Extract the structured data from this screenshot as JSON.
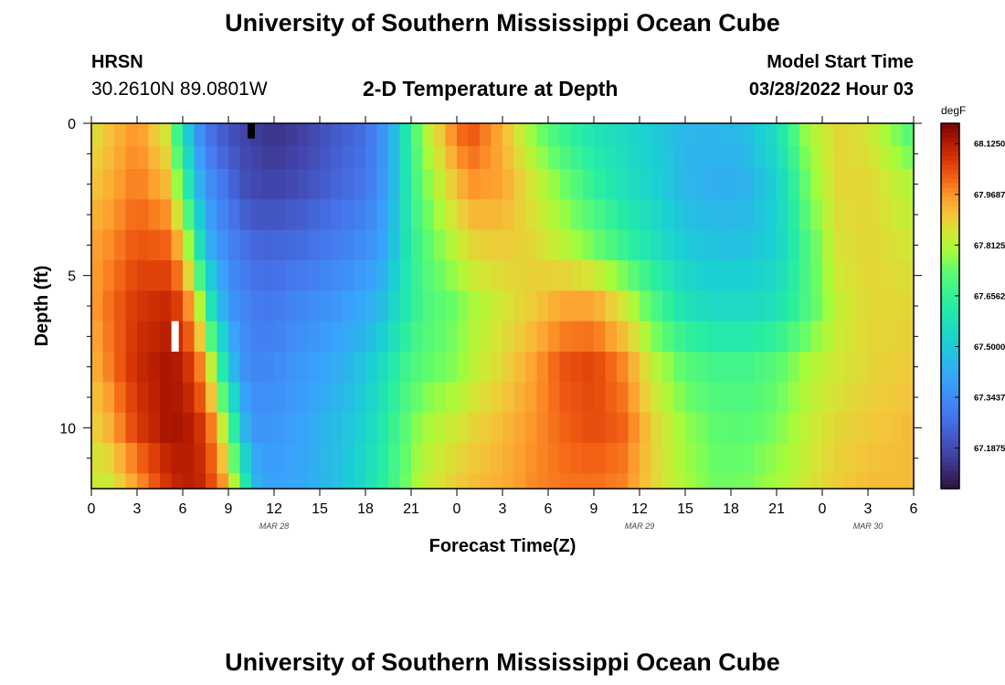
{
  "page": {
    "title": "University of Southern Mississippi Ocean Cube",
    "station_code": "HRSN",
    "station_coords": "30.2610N  89.0801W",
    "plot_subtitle": "2-D Temperature at Depth",
    "model_start_label": "Model Start Time",
    "model_start_value": "03/28/2022 Hour 03",
    "footer_title": "University of Southern Mississippi Ocean Cube"
  },
  "chart_data": {
    "type": "heatmap",
    "title": "2-D Temperature at Depth",
    "xlabel": "Forecast Time(Z)",
    "ylabel": "Depth (ft)",
    "x_hours_range": [
      0,
      54
    ],
    "y_depth_range": [
      0,
      12
    ],
    "y_inverted": true,
    "x_tick_hours": [
      0,
      3,
      6,
      9,
      12,
      15,
      18,
      21,
      24,
      27,
      30,
      33,
      36,
      39,
      42,
      45,
      48,
      51,
      54
    ],
    "x_tick_labels": [
      "0",
      "3",
      "6",
      "9",
      "12",
      "15",
      "18",
      "21",
      "0",
      "3",
      "6",
      "9",
      "12",
      "15",
      "18",
      "21",
      "0",
      "3",
      "6"
    ],
    "date_labels": [
      {
        "text": "MAR 28",
        "hour": 12
      },
      {
        "text": "MAR 29",
        "hour": 36
      },
      {
        "text": "MAR 30",
        "hour": 51
      }
    ],
    "y_ticks": [
      0,
      5,
      10
    ],
    "y_tick_labels": [
      "0",
      "5",
      "10"
    ],
    "colorbar": {
      "unit": "degF",
      "vmin": 67.0625,
      "vmax": 68.1875,
      "tick_values": [
        68.125,
        67.96875,
        67.8125,
        67.65625,
        67.5,
        67.34375,
        67.1875
      ],
      "tick_labels": [
        "68.1250",
        "67.9687",
        "67.8125",
        "67.6562",
        "67.5000",
        "67.3437",
        "67.1875"
      ]
    },
    "hour_step": 0.75,
    "depth_bands": [
      0,
      0.75,
      1.5,
      2.5,
      3.5,
      4.5,
      5.5,
      6.5,
      7.5,
      8.5,
      9.5,
      10.5,
      11.5,
      12
    ],
    "depth_samples": [
      0,
      2,
      4,
      6,
      8,
      10,
      12
    ],
    "profile_time_hours": [
      0,
      1,
      3,
      5,
      6,
      7,
      8,
      9,
      10,
      11,
      12,
      14,
      16,
      18,
      19,
      20,
      21,
      22,
      24,
      25,
      27,
      29,
      31,
      33,
      35,
      37,
      39,
      41,
      43,
      45,
      47,
      49,
      51,
      54
    ],
    "temperature_degF": [
      [
        67.85,
        67.9,
        67.95,
        67.95,
        67.92,
        67.88,
        67.84
      ],
      [
        67.9,
        67.93,
        67.97,
        68.0,
        67.98,
        67.92,
        67.82
      ],
      [
        67.97,
        68.0,
        68.04,
        68.08,
        68.1,
        68.07,
        67.95
      ],
      [
        67.83,
        67.92,
        68.02,
        68.1,
        68.14,
        68.14,
        68.08
      ],
      [
        67.55,
        67.7,
        67.9,
        68.05,
        68.12,
        68.14,
        68.12
      ],
      [
        67.35,
        67.45,
        67.6,
        67.85,
        68.02,
        68.1,
        68.12
      ],
      [
        67.25,
        67.33,
        67.4,
        67.55,
        67.8,
        67.98,
        68.05
      ],
      [
        67.2,
        67.27,
        67.33,
        67.38,
        67.5,
        67.75,
        67.95
      ],
      [
        67.17,
        67.2,
        67.28,
        67.33,
        67.36,
        67.45,
        67.65
      ],
      [
        67.15,
        67.18,
        67.25,
        67.3,
        67.33,
        67.36,
        67.42
      ],
      [
        67.13,
        67.17,
        67.25,
        67.3,
        67.34,
        67.37,
        67.4
      ],
      [
        67.16,
        67.2,
        67.27,
        67.34,
        67.38,
        67.41,
        67.42
      ],
      [
        67.22,
        67.25,
        67.31,
        67.37,
        67.42,
        67.46,
        67.47
      ],
      [
        67.27,
        67.29,
        67.35,
        67.42,
        67.49,
        67.53,
        67.56
      ],
      [
        67.35,
        67.36,
        67.39,
        67.46,
        67.55,
        67.6,
        67.63
      ],
      [
        67.48,
        67.48,
        67.5,
        67.55,
        67.63,
        67.68,
        67.7
      ],
      [
        67.68,
        67.66,
        67.64,
        67.64,
        67.7,
        67.75,
        67.78
      ],
      [
        67.82,
        67.76,
        67.72,
        67.7,
        67.73,
        67.8,
        67.84
      ],
      [
        68.02,
        67.92,
        67.83,
        67.75,
        67.77,
        67.85,
        67.9
      ],
      [
        68.05,
        67.97,
        67.88,
        67.8,
        67.82,
        67.88,
        67.92
      ],
      [
        67.93,
        67.95,
        67.9,
        67.85,
        67.88,
        67.92,
        67.94
      ],
      [
        67.76,
        67.85,
        67.88,
        67.9,
        67.95,
        67.97,
        67.98
      ],
      [
        67.65,
        67.75,
        67.82,
        67.95,
        68.04,
        68.02,
        68.0
      ],
      [
        67.58,
        67.65,
        67.75,
        67.95,
        68.06,
        68.05,
        68.0
      ],
      [
        67.55,
        67.58,
        67.66,
        67.85,
        67.98,
        68.02,
        67.98
      ],
      [
        67.5,
        67.52,
        67.58,
        67.7,
        67.82,
        67.88,
        67.88
      ],
      [
        67.45,
        67.45,
        67.5,
        67.58,
        67.72,
        67.78,
        67.8
      ],
      [
        67.45,
        67.43,
        67.48,
        67.55,
        67.68,
        67.73,
        67.75
      ],
      [
        67.47,
        67.44,
        67.48,
        67.55,
        67.68,
        67.72,
        67.76
      ],
      [
        67.58,
        67.52,
        67.52,
        67.58,
        67.72,
        67.76,
        67.8
      ],
      [
        67.8,
        67.75,
        67.7,
        67.7,
        67.8,
        67.83,
        67.85
      ],
      [
        67.88,
        67.88,
        67.86,
        67.83,
        67.85,
        67.88,
        67.9
      ],
      [
        67.85,
        67.88,
        67.88,
        67.88,
        67.88,
        67.9,
        67.92
      ],
      [
        67.68,
        67.8,
        67.85,
        67.88,
        67.9,
        67.92,
        67.92
      ]
    ],
    "missing_markers": [
      {
        "hour": 10.5,
        "depth_from": 0,
        "depth_to": 0.5,
        "color": "#000000"
      },
      {
        "hour": 5.5,
        "depth_from": 6.5,
        "depth_to": 7.5,
        "color": "#ffffff"
      }
    ]
  }
}
